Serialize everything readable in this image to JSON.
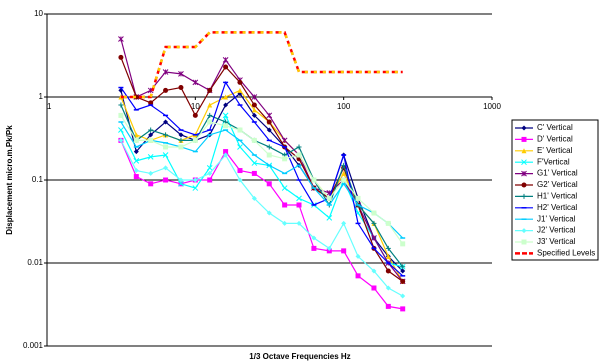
{
  "chart_data": {
    "type": "line",
    "x_label": "1/3 Octave Frequencies Hz",
    "y_label": "Displacement micro.m.Pk/Pk",
    "log_x": true,
    "log_y": true,
    "grid": true,
    "legend": "right",
    "x_axis_crosses": 1,
    "xlim": [
      1,
      1000
    ],
    "xticks": [
      1,
      10,
      100,
      1000
    ],
    "ylim": [
      0.001,
      10
    ],
    "yticks": [
      0.001,
      0.01,
      0.1,
      1,
      10
    ],
    "x": [
      3.15,
      4,
      5,
      6.3,
      8,
      10,
      12.5,
      16,
      20,
      25,
      31.5,
      40,
      50,
      63,
      80,
      100,
      125,
      160,
      200,
      250
    ],
    "series": [
      {
        "name": "C' Vertical",
        "color": "#000080",
        "marker": "diamond",
        "values": [
          1.2,
          0.22,
          0.35,
          0.5,
          0.35,
          0.3,
          0.35,
          0.8,
          1.1,
          0.6,
          0.4,
          0.25,
          0.15,
          0.08,
          0.06,
          0.2,
          0.06,
          0.02,
          0.012,
          0.008
        ]
      },
      {
        "name": "D' Vertical",
        "color": "#ff00ff",
        "marker": "square",
        "values": [
          0.3,
          0.11,
          0.09,
          0.1,
          0.09,
          0.1,
          0.1,
          0.22,
          0.13,
          0.12,
          0.09,
          0.05,
          0.05,
          0.015,
          0.014,
          0.014,
          0.007,
          0.005,
          0.003,
          0.0028
        ]
      },
      {
        "name": "E' Vertical",
        "color": "#ffcc00",
        "marker": "triangle",
        "values": [
          1.0,
          0.35,
          0.3,
          0.35,
          0.3,
          0.35,
          0.8,
          1.0,
          1.2,
          0.7,
          0.5,
          0.3,
          0.2,
          0.1,
          0.06,
          0.12,
          0.05,
          0.03,
          0.012,
          0.006
        ]
      },
      {
        "name": "F'Vertical",
        "color": "#00ffff",
        "marker": "x",
        "values": [
          0.4,
          0.17,
          0.19,
          0.2,
          0.09,
          0.08,
          0.14,
          0.6,
          0.25,
          0.16,
          0.15,
          0.08,
          0.06,
          0.05,
          0.035,
          0.1,
          0.04,
          0.02,
          0.01,
          0.009
        ]
      },
      {
        "name": "G1' Vertical",
        "color": "#800080",
        "marker": "star",
        "values": [
          5,
          1,
          1.2,
          2,
          1.9,
          1.5,
          1.2,
          2.8,
          1.6,
          1.0,
          0.6,
          0.3,
          0.2,
          0.08,
          0.07,
          0.1,
          0.05,
          0.02,
          0.01,
          0.006
        ]
      },
      {
        "name": "G2' Vertical",
        "color": "#800000",
        "marker": "circle",
        "values": [
          3,
          1.0,
          0.85,
          1.2,
          1.3,
          0.6,
          1.2,
          2.3,
          1.5,
          0.8,
          0.5,
          0.25,
          0.18,
          0.08,
          0.06,
          0.14,
          0.05,
          0.015,
          0.008,
          0.006
        ]
      },
      {
        "name": "H1' Vertical",
        "color": "#008080",
        "marker": "plus",
        "values": [
          0.8,
          0.3,
          0.4,
          0.35,
          0.3,
          0.3,
          0.6,
          0.5,
          0.4,
          0.3,
          0.25,
          0.2,
          0.25,
          0.1,
          0.05,
          0.15,
          0.05,
          0.03,
          0.015,
          0.009
        ]
      },
      {
        "name": "H2' Vertical",
        "color": "#0000ff",
        "marker": "dash",
        "values": [
          1.3,
          0.7,
          0.8,
          0.6,
          0.4,
          0.35,
          0.4,
          1.5,
          0.8,
          0.5,
          0.3,
          0.25,
          0.1,
          0.05,
          0.06,
          0.2,
          0.03,
          0.015,
          0.01,
          0.007
        ]
      },
      {
        "name": "J1' Vertical",
        "color": "#00ccff",
        "marker": "dash",
        "values": [
          0.5,
          0.25,
          0.3,
          0.28,
          0.25,
          0.22,
          0.35,
          0.4,
          0.3,
          0.2,
          0.15,
          0.12,
          0.15,
          0.08,
          0.05,
          0.09,
          0.05,
          0.04,
          0.03,
          0.02
        ]
      },
      {
        "name": "J2' Vertical",
        "color": "#66ffff",
        "marker": "diamond",
        "values": [
          0.3,
          0.13,
          0.12,
          0.14,
          0.1,
          0.1,
          0.12,
          0.2,
          0.1,
          0.06,
          0.04,
          0.03,
          0.03,
          0.02,
          0.015,
          0.03,
          0.012,
          0.008,
          0.005,
          0.004
        ]
      },
      {
        "name": "J3' Vertical",
        "color": "#ccffcc",
        "marker": "square",
        "values": [
          0.6,
          0.3,
          0.3,
          0.25,
          0.25,
          0.3,
          0.5,
          0.45,
          0.4,
          0.3,
          0.2,
          0.18,
          0.2,
          0.1,
          0.06,
          0.1,
          0.06,
          0.04,
          0.03,
          0.017
        ]
      },
      {
        "name": "Specified Levels",
        "color": "#ff0000",
        "dashed": true,
        "values": [
          1,
          1,
          1,
          4,
          4,
          4,
          6,
          6,
          6,
          6,
          6,
          6,
          2,
          2,
          2,
          2,
          2,
          2,
          2,
          2
        ]
      }
    ]
  }
}
